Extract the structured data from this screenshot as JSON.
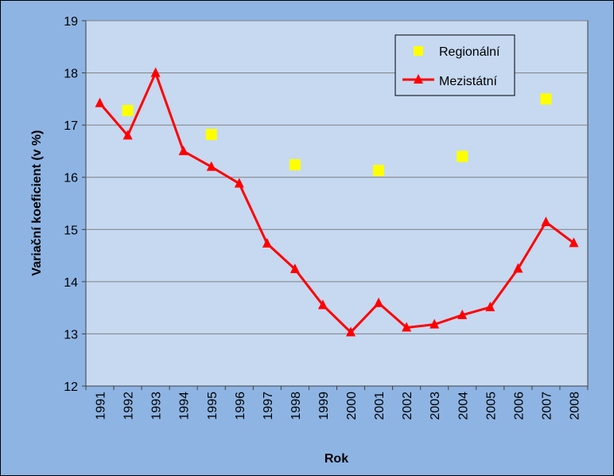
{
  "chart_data": {
    "type": "line",
    "xlabel": "Rok",
    "ylabel": "Variační koeficient (v %)",
    "ylim": [
      12,
      19
    ],
    "yticks": [
      12,
      13,
      14,
      15,
      16,
      17,
      18,
      19
    ],
    "categories": [
      "1991",
      "1992",
      "1993",
      "1994",
      "1995",
      "1996",
      "1997",
      "1998",
      "1999",
      "2000",
      "2001",
      "2002",
      "2003",
      "2004",
      "2005",
      "2006",
      "2007",
      "2008"
    ],
    "grid": "horizontal",
    "legend_position": "top-right",
    "series": [
      {
        "name": "Regionální",
        "kind": "scatter",
        "marker": "square",
        "color": "#FFFF00",
        "points": [
          {
            "x": "1992",
            "y": 17.28
          },
          {
            "x": "1995",
            "y": 16.82
          },
          {
            "x": "1998",
            "y": 16.24
          },
          {
            "x": "2001",
            "y": 16.13
          },
          {
            "x": "2004",
            "y": 16.4
          },
          {
            "x": "2007",
            "y": 17.5
          }
        ]
      },
      {
        "name": "Mezistátní",
        "kind": "line",
        "marker": "triangle",
        "color": "#FF0000",
        "points": [
          {
            "x": "1991",
            "y": 17.42
          },
          {
            "x": "1992",
            "y": 16.8
          },
          {
            "x": "1993",
            "y": 18.0
          },
          {
            "x": "1994",
            "y": 16.5
          },
          {
            "x": "1995",
            "y": 16.2
          },
          {
            "x": "1996",
            "y": 15.88
          },
          {
            "x": "1997",
            "y": 14.73
          },
          {
            "x": "1998",
            "y": 14.24
          },
          {
            "x": "1999",
            "y": 13.55
          },
          {
            "x": "2000",
            "y": 13.03
          },
          {
            "x": "2001",
            "y": 13.59
          },
          {
            "x": "2002",
            "y": 13.12
          },
          {
            "x": "2003",
            "y": 13.18
          },
          {
            "x": "2004",
            "y": 13.36
          },
          {
            "x": "2005",
            "y": 13.51
          },
          {
            "x": "2006",
            "y": 14.25
          },
          {
            "x": "2007",
            "y": 15.14
          },
          {
            "x": "2008",
            "y": 14.74
          }
        ]
      }
    ]
  },
  "colors": {
    "frame_background": "#8EB4E3",
    "plot_background": "#C6D9F1",
    "gridline": "#7F7F7F"
  }
}
